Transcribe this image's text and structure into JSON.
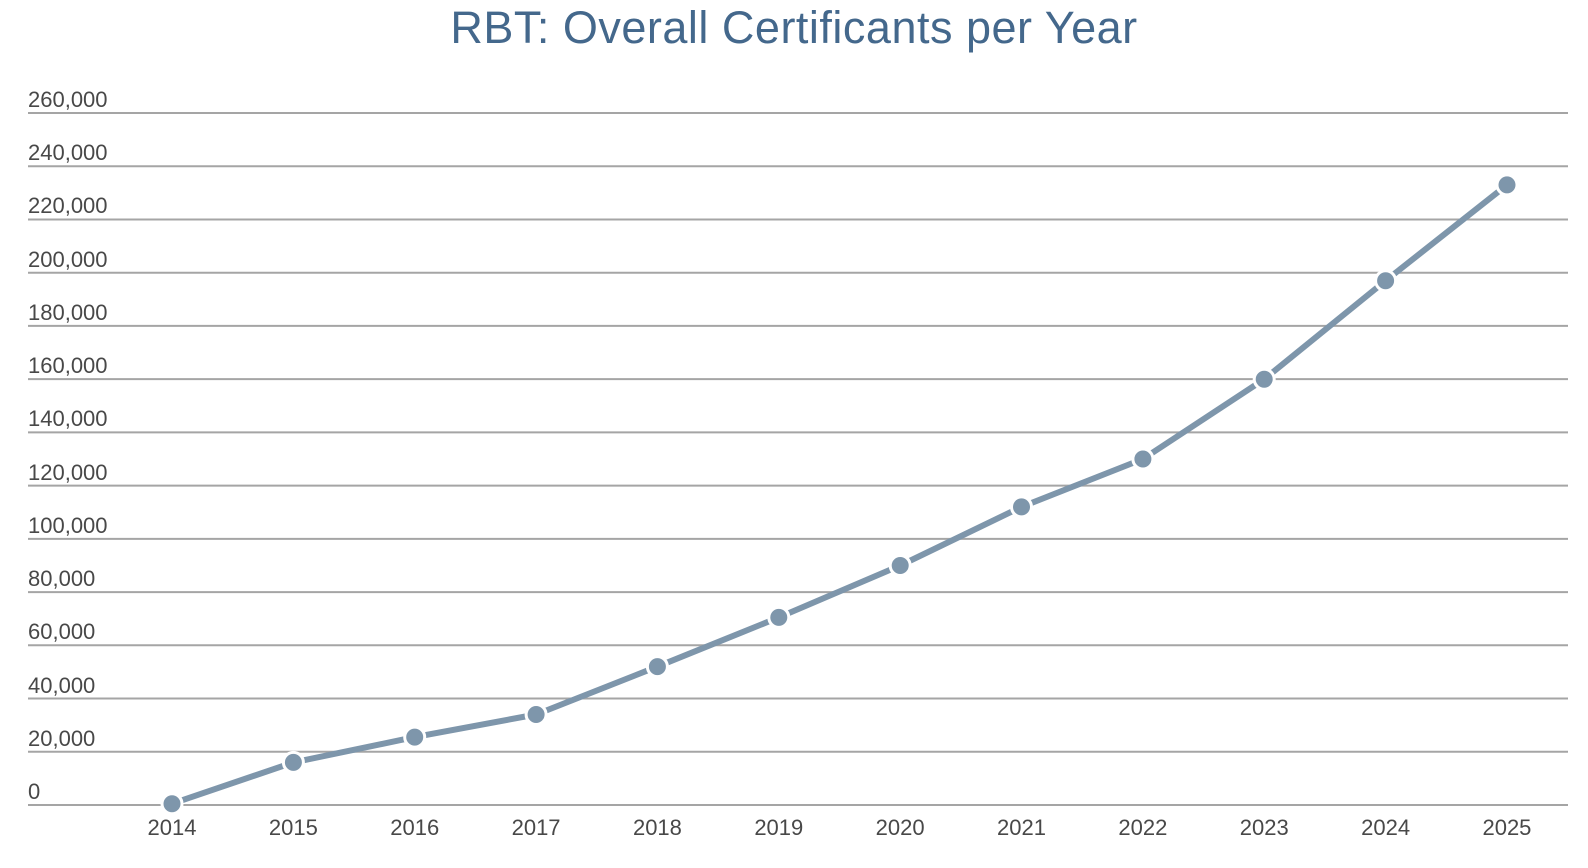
{
  "chart_data": {
    "type": "line",
    "title": "RBT: Overall Certificants per Year",
    "categories": [
      "2014",
      "2015",
      "2016",
      "2017",
      "2018",
      "2019",
      "2020",
      "2021",
      "2022",
      "2023",
      "2024",
      "2025"
    ],
    "values": [
      500,
      16000,
      25500,
      34000,
      52000,
      70500,
      90000,
      112000,
      130000,
      160000,
      197000,
      233000
    ],
    "xlabel": "",
    "ylabel": "",
    "ylim": [
      0,
      260000
    ],
    "ytick_step": 20000,
    "yticks": [
      0,
      20000,
      40000,
      60000,
      80000,
      100000,
      120000,
      140000,
      160000,
      180000,
      200000,
      220000,
      240000,
      260000
    ],
    "grid": true,
    "legend": "none",
    "marker_style": "circle-with-white-ring",
    "colors": {
      "line": "#7e96ab",
      "marker_fill": "#7e96ab",
      "marker_ring": "#ffffff",
      "title": "#44688c",
      "tick_label": "#484848",
      "gridline": "#a5a5a5",
      "background": "#ffffff"
    }
  }
}
